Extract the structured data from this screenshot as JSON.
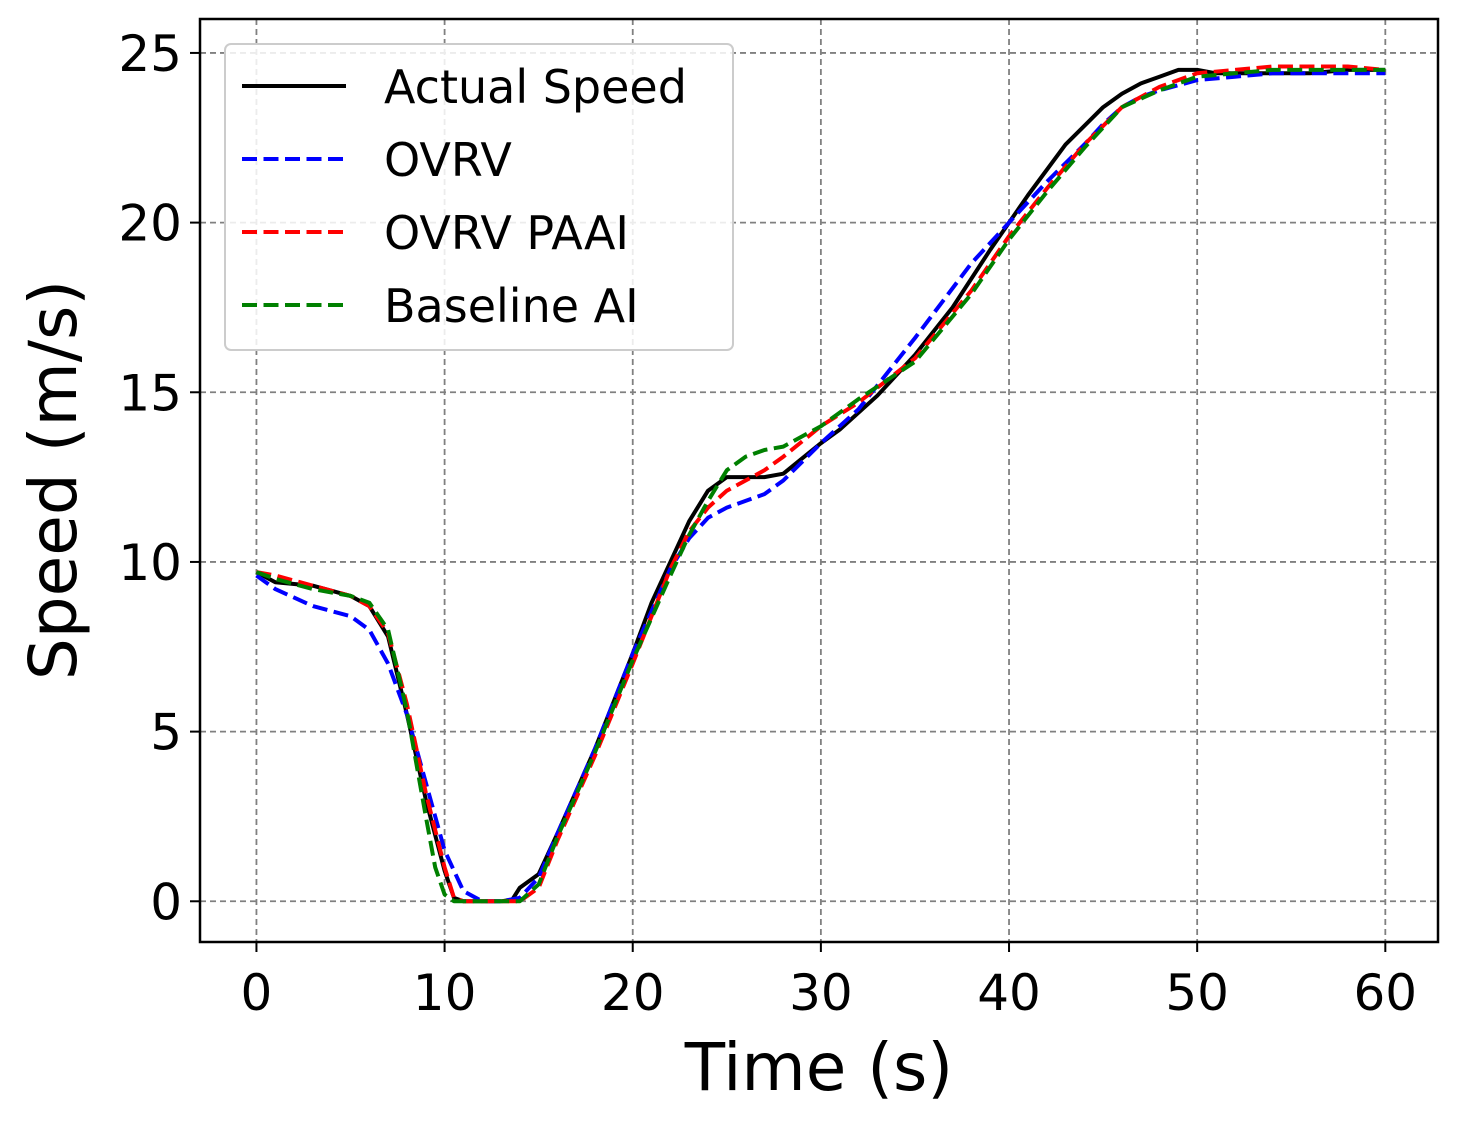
{
  "chart_data": {
    "type": "line",
    "title": "",
    "xlabel": "Time (s)",
    "ylabel": "Speed (m/s)",
    "xlim": [
      -3,
      62.8
    ],
    "ylim": [
      -1.2,
      26
    ],
    "xticks": [
      0,
      10,
      20,
      30,
      40,
      50,
      60
    ],
    "yticks": [
      0,
      5,
      10,
      15,
      20,
      25
    ],
    "xtick_labels": [
      "0",
      "10",
      "20",
      "30",
      "40",
      "50",
      "60"
    ],
    "ytick_labels": [
      "0",
      "5",
      "10",
      "15",
      "20",
      "25"
    ],
    "grid": true,
    "legend_position": "top-left",
    "series": [
      {
        "name": "Actual Speed",
        "color": "#000000",
        "style": "solid",
        "x": [
          0,
          1,
          3,
          5,
          6,
          7,
          8,
          9,
          10,
          10.5,
          11,
          12,
          13,
          13.6,
          14,
          15,
          16,
          18,
          20,
          21,
          22,
          23,
          24,
          25,
          26,
          27,
          28,
          30,
          31,
          33,
          35,
          37,
          39,
          41,
          43,
          45,
          46,
          47,
          48,
          49,
          50,
          51,
          52,
          54,
          56,
          58,
          60
        ],
        "y": [
          9.7,
          9.4,
          9.3,
          9.0,
          8.7,
          7.8,
          5.5,
          3.0,
          0.9,
          0.1,
          0.0,
          0.0,
          0.0,
          0.05,
          0.4,
          0.8,
          2.0,
          4.5,
          7.3,
          8.8,
          10.0,
          11.2,
          12.1,
          12.5,
          12.5,
          12.5,
          12.6,
          13.5,
          13.9,
          14.9,
          16.1,
          17.5,
          19.2,
          20.8,
          22.3,
          23.4,
          23.8,
          24.1,
          24.3,
          24.5,
          24.5,
          24.4,
          24.4,
          24.4,
          24.4,
          24.5,
          24.5
        ]
      },
      {
        "name": "OVRV",
        "color": "#0000ff",
        "style": "dashed",
        "x": [
          0,
          1,
          3,
          5,
          6,
          7,
          8,
          9,
          10,
          11,
          12,
          13,
          14,
          15,
          16,
          18,
          20,
          22,
          23,
          24,
          25,
          26,
          27,
          28,
          30,
          32,
          35,
          38,
          40,
          42,
          44,
          45,
          46,
          47,
          48,
          50,
          52,
          54,
          56,
          58,
          60
        ],
        "y": [
          9.6,
          9.2,
          8.7,
          8.4,
          8.0,
          7.0,
          5.5,
          3.5,
          1.5,
          0.3,
          0.0,
          0.0,
          0.1,
          0.7,
          2.0,
          4.5,
          7.3,
          9.8,
          10.7,
          11.3,
          11.6,
          11.8,
          12.0,
          12.4,
          13.5,
          14.5,
          16.6,
          18.8,
          20.0,
          21.2,
          22.3,
          22.9,
          23.4,
          23.7,
          23.9,
          24.2,
          24.3,
          24.4,
          24.4,
          24.4,
          24.4
        ]
      },
      {
        "name": "OVRV PAAI",
        "color": "#ff0000",
        "style": "dashed",
        "x": [
          0,
          1,
          3,
          5,
          6,
          7,
          8,
          9,
          10,
          10.5,
          11,
          12,
          13,
          14,
          15,
          16,
          18,
          20,
          22,
          23,
          24,
          25,
          26,
          27,
          28,
          30,
          32,
          35,
          38,
          40,
          42,
          44,
          46,
          48,
          50,
          52,
          54,
          56,
          58,
          60
        ],
        "y": [
          9.7,
          9.6,
          9.3,
          9.0,
          8.7,
          7.9,
          5.8,
          3.2,
          1.0,
          0.1,
          0.0,
          0.0,
          0.0,
          0.0,
          0.4,
          1.8,
          4.3,
          7.0,
          9.8,
          10.9,
          11.6,
          12.1,
          12.4,
          12.7,
          13.1,
          14.0,
          14.7,
          16.0,
          18.0,
          19.6,
          21.0,
          22.3,
          23.4,
          24.0,
          24.4,
          24.5,
          24.6,
          24.6,
          24.6,
          24.5
        ]
      },
      {
        "name": "Baseline AI",
        "color": "#008000",
        "style": "dashed",
        "x": [
          0,
          1,
          3,
          5,
          6,
          7,
          8,
          9,
          9.5,
          10,
          10.5,
          11,
          12,
          13,
          14,
          15,
          16,
          18,
          20,
          22,
          23,
          24,
          25,
          26,
          27,
          28,
          30,
          32,
          35,
          38,
          40,
          42,
          44,
          46,
          48,
          50,
          52,
          54,
          56,
          58,
          60
        ],
        "y": [
          9.7,
          9.5,
          9.2,
          9.0,
          8.8,
          8.0,
          5.6,
          2.5,
          1.0,
          0.2,
          0.0,
          0.0,
          0.0,
          0.0,
          0.0,
          0.5,
          1.9,
          4.4,
          7.1,
          9.6,
          10.8,
          11.8,
          12.7,
          13.1,
          13.3,
          13.4,
          14.0,
          14.8,
          15.9,
          17.9,
          19.5,
          20.9,
          22.2,
          23.4,
          23.9,
          24.3,
          24.4,
          24.5,
          24.5,
          24.5,
          24.5
        ]
      }
    ]
  }
}
